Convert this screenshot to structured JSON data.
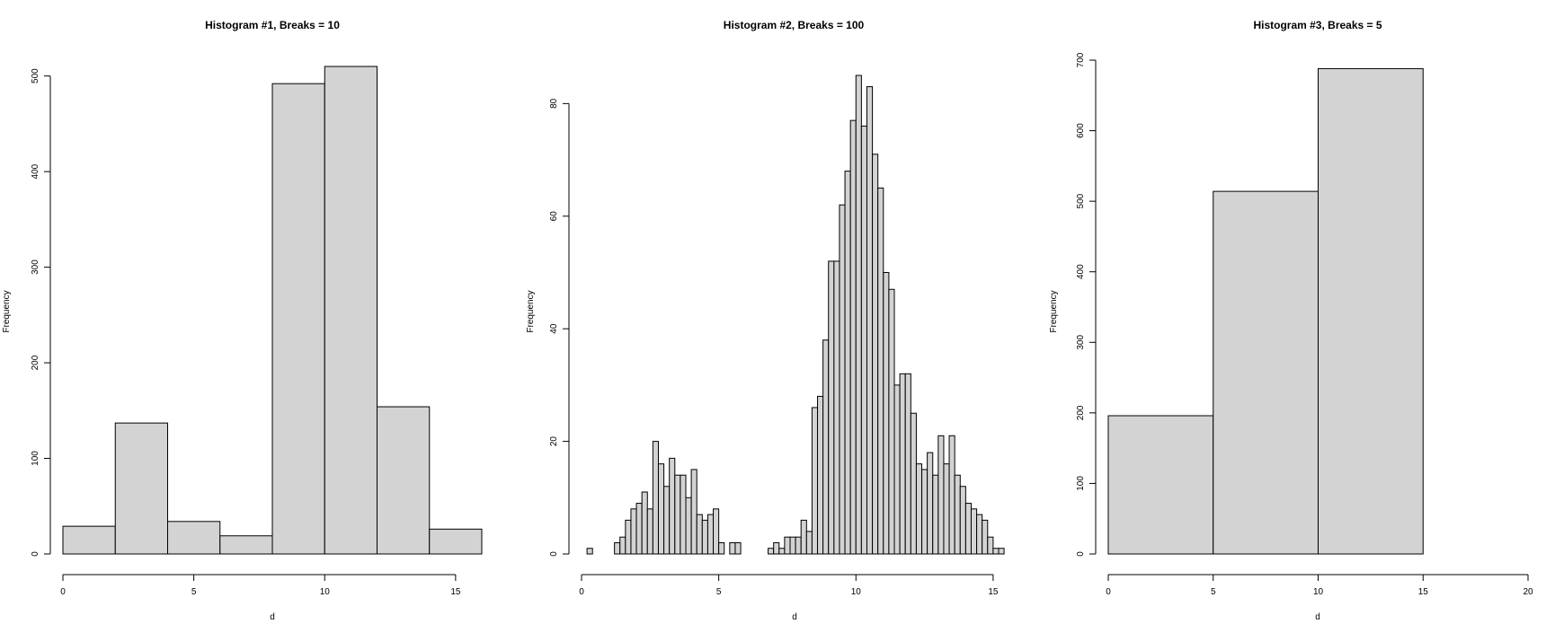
{
  "chart_data": [
    {
      "type": "bar",
      "title": "Histogram #1, Breaks = 10",
      "xlabel": "d",
      "ylabel": "Frequency",
      "xlim": [
        0,
        16
      ],
      "ylim": [
        0,
        510
      ],
      "xticks": [
        0,
        5,
        10,
        15
      ],
      "yticks": [
        0,
        100,
        200,
        300,
        400,
        500
      ],
      "grid": false,
      "legend": "none",
      "bin_edges": [
        0,
        2,
        4,
        6,
        8,
        10,
        12,
        14,
        16
      ],
      "values": [
        29,
        137,
        34,
        19,
        492,
        510,
        154,
        26
      ]
    },
    {
      "type": "bar",
      "title": "Histogram #2, Breaks = 100",
      "xlabel": "d",
      "ylabel": "Frequency",
      "xlim": [
        0,
        15.2
      ],
      "ylim": [
        0,
        85
      ],
      "xticks": [
        0,
        5,
        10,
        15
      ],
      "yticks": [
        0,
        20,
        40,
        60,
        80
      ],
      "grid": false,
      "legend": "none",
      "bin_start": 0.2,
      "bin_width": 0.2,
      "values": [
        1,
        0,
        0,
        0,
        0,
        2,
        3,
        6,
        8,
        9,
        11,
        8,
        20,
        16,
        12,
        17,
        14,
        14,
        10,
        15,
        7,
        6,
        7,
        8,
        2,
        0,
        2,
        2,
        0,
        0,
        0,
        0,
        0,
        1,
        2,
        1,
        3,
        3,
        3,
        6,
        4,
        26,
        28,
        38,
        52,
        52,
        62,
        68,
        77,
        85,
        76,
        83,
        71,
        65,
        50,
        47,
        30,
        32,
        32,
        25,
        16,
        15,
        18,
        14,
        21,
        16,
        21,
        14,
        12,
        9,
        8,
        7,
        6,
        3,
        1,
        1
      ]
    },
    {
      "type": "bar",
      "title": "Histogram #3, Breaks = 5",
      "xlabel": "d",
      "ylabel": "Frequency",
      "xlim": [
        0,
        20
      ],
      "ylim": [
        0,
        700
      ],
      "xticks": [
        0,
        5,
        10,
        15,
        20
      ],
      "yticks": [
        0,
        100,
        200,
        300,
        400,
        500,
        600,
        700
      ],
      "grid": false,
      "legend": "none",
      "bin_edges": [
        0,
        5,
        10,
        15,
        20
      ],
      "values": [
        196,
        514,
        688,
        0
      ]
    }
  ]
}
